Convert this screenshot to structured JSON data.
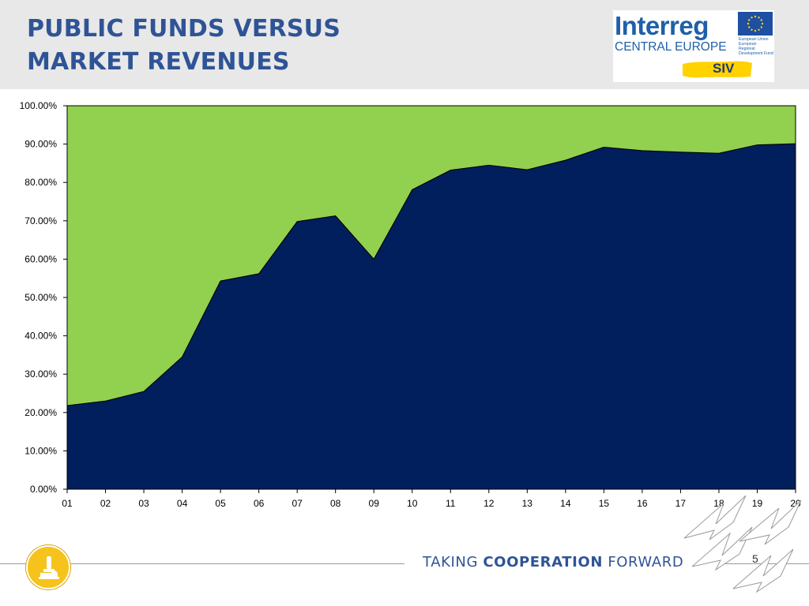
{
  "slide": {
    "title_line1": "PUBLIC FUNDS VERSUS",
    "title_line2": "MARKET REVENUES",
    "page_number": "5"
  },
  "logo": {
    "brand": "Interreg",
    "subtitle": "CENTRAL EUROPE",
    "eu_text": "European Union European Regional Development Fund",
    "project": "SIV"
  },
  "footer": {
    "tagline_part1": "TAKING ",
    "tagline_part2": "COOPERATION",
    "tagline_part3": " FORWARD"
  },
  "colors": {
    "title": "#2f5496",
    "public_area": "#001f5c",
    "market_area": "#92d050"
  },
  "chart_data": {
    "type": "area",
    "stacked": true,
    "percent": true,
    "title": "",
    "xlabel": "",
    "ylabel": "",
    "x": [
      "01",
      "02",
      "03",
      "04",
      "05",
      "06",
      "07",
      "08",
      "09",
      "10",
      "11",
      "12",
      "13",
      "14",
      "15",
      "16",
      "17",
      "18",
      "19",
      "20"
    ],
    "ylim": [
      0,
      100
    ],
    "yticks": [
      "0.00%",
      "10.00%",
      "20.00%",
      "30.00%",
      "40.00%",
      "50.00%",
      "60.00%",
      "70.00%",
      "80.00%",
      "90.00%",
      "100.00%"
    ],
    "grid": false,
    "legend": "none",
    "series": [
      {
        "color": "#001f5c",
        "values": [
          21.8,
          23.0,
          25.5,
          34.5,
          54.3,
          56.2,
          69.8,
          71.3,
          60.0,
          78.1,
          83.2,
          84.5,
          83.3,
          85.8,
          89.2,
          88.3,
          87.9,
          87.6,
          89.8,
          90.1
        ]
      },
      {
        "color": "#92d050",
        "values": [
          78.2,
          77.0,
          74.5,
          65.5,
          45.7,
          43.8,
          30.2,
          28.7,
          40.0,
          21.9,
          16.8,
          15.5,
          16.7,
          14.2,
          10.8,
          11.7,
          12.1,
          12.4,
          10.2,
          9.9
        ]
      }
    ]
  }
}
